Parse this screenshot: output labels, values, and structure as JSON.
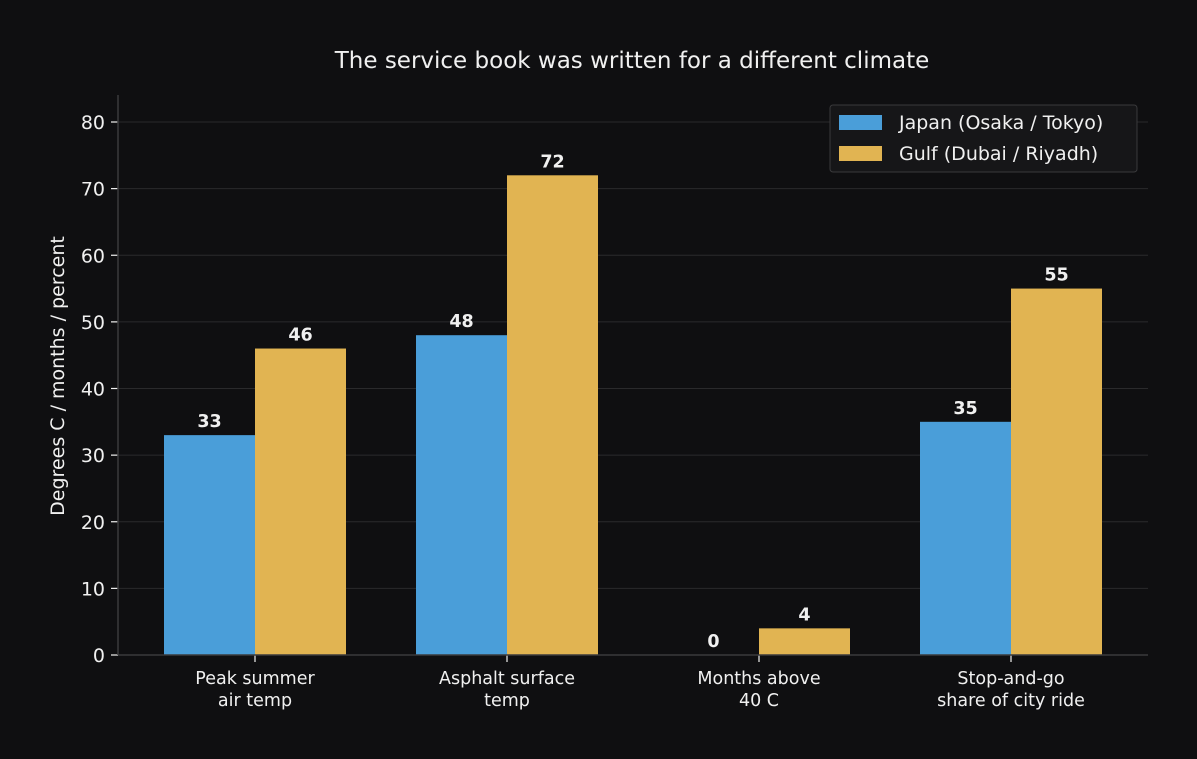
{
  "chart_data": {
    "type": "bar",
    "title": "The service book was written for a different climate",
    "xlabel": "",
    "ylabel": "Degrees C  /  months  /  percent",
    "ylim": [
      0,
      84
    ],
    "yticks": [
      0,
      10,
      20,
      30,
      40,
      50,
      60,
      70,
      80
    ],
    "grid": true,
    "legend_position": "top-right",
    "categories": [
      [
        "Peak summer",
        "air temp"
      ],
      [
        "Asphalt surface",
        "temp"
      ],
      [
        "Months above",
        "40 C"
      ],
      [
        "Stop-and-go",
        "share of city ride"
      ]
    ],
    "series": [
      {
        "name": "Japan (Osaka / Tokyo)",
        "color": "#4a9ed9",
        "values": [
          33,
          48,
          0,
          35
        ]
      },
      {
        "name": "Gulf (Dubai / Riyadh)",
        "color": "#e1b452",
        "values": [
          46,
          72,
          4,
          55
        ]
      }
    ],
    "colors": {
      "background": "#0f0f11",
      "text": "#f0f0f0",
      "grid": "#2a2a2c",
      "axis": "#3a3a3c",
      "legend_bg": "#161618",
      "legend_border": "#3a3a3c"
    }
  }
}
